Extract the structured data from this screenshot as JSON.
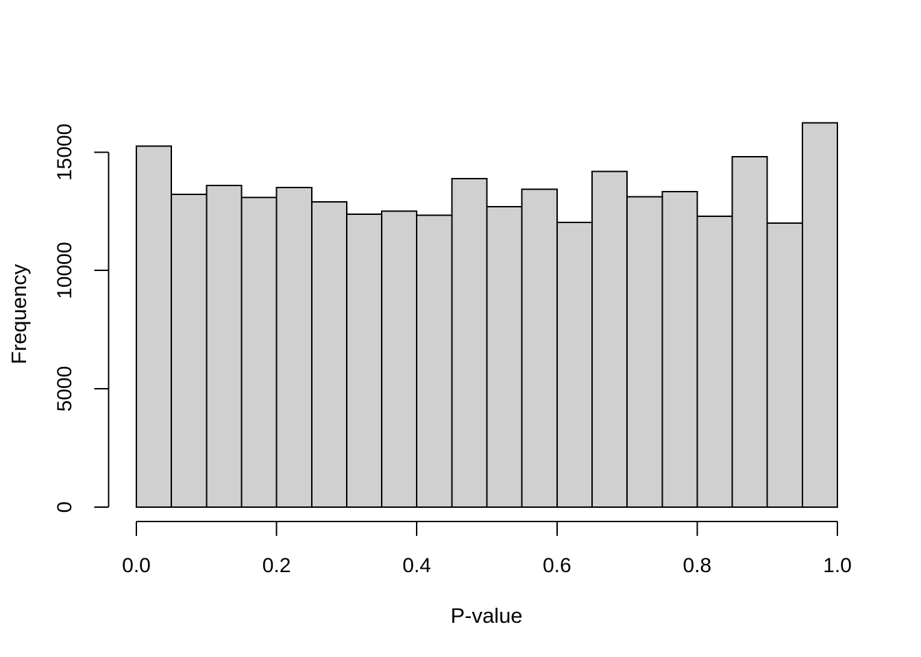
{
  "figure": {
    "background": "#ffffff",
    "text_color": "#000000"
  },
  "chart_data": {
    "type": "bar",
    "subtype": "histogram",
    "title": "",
    "xlabel": "P-value",
    "ylabel": "Frequency",
    "bar_fill": "#d0d0d0",
    "bar_stroke": "#000000",
    "bin_width": 0.05,
    "bin_edges": [
      0,
      0.05,
      0.1,
      0.15,
      0.2,
      0.25,
      0.3,
      0.35,
      0.4,
      0.45,
      0.5,
      0.55,
      0.6,
      0.65,
      0.7,
      0.75,
      0.8,
      0.85,
      0.9,
      0.95,
      1.0
    ],
    "values": [
      15260,
      13210,
      13590,
      13090,
      13500,
      12900,
      12370,
      12510,
      12340,
      13880,
      12700,
      13430,
      12030,
      14180,
      13110,
      13330,
      12290,
      14800,
      12000,
      16240
    ],
    "x_ticks": {
      "values": [
        0.0,
        0.2,
        0.4,
        0.6,
        0.8,
        1.0
      ],
      "labels": [
        "0.0",
        "0.2",
        "0.4",
        "0.6",
        "0.8",
        "1.0"
      ]
    },
    "y_ticks": {
      "values": [
        0,
        5000,
        10000,
        15000
      ],
      "labels": [
        "0",
        "5000",
        "10000",
        "15000"
      ]
    },
    "xlim": [
      0,
      1
    ],
    "ylim": [
      0,
      16240
    ],
    "grid": false,
    "legend": null
  }
}
